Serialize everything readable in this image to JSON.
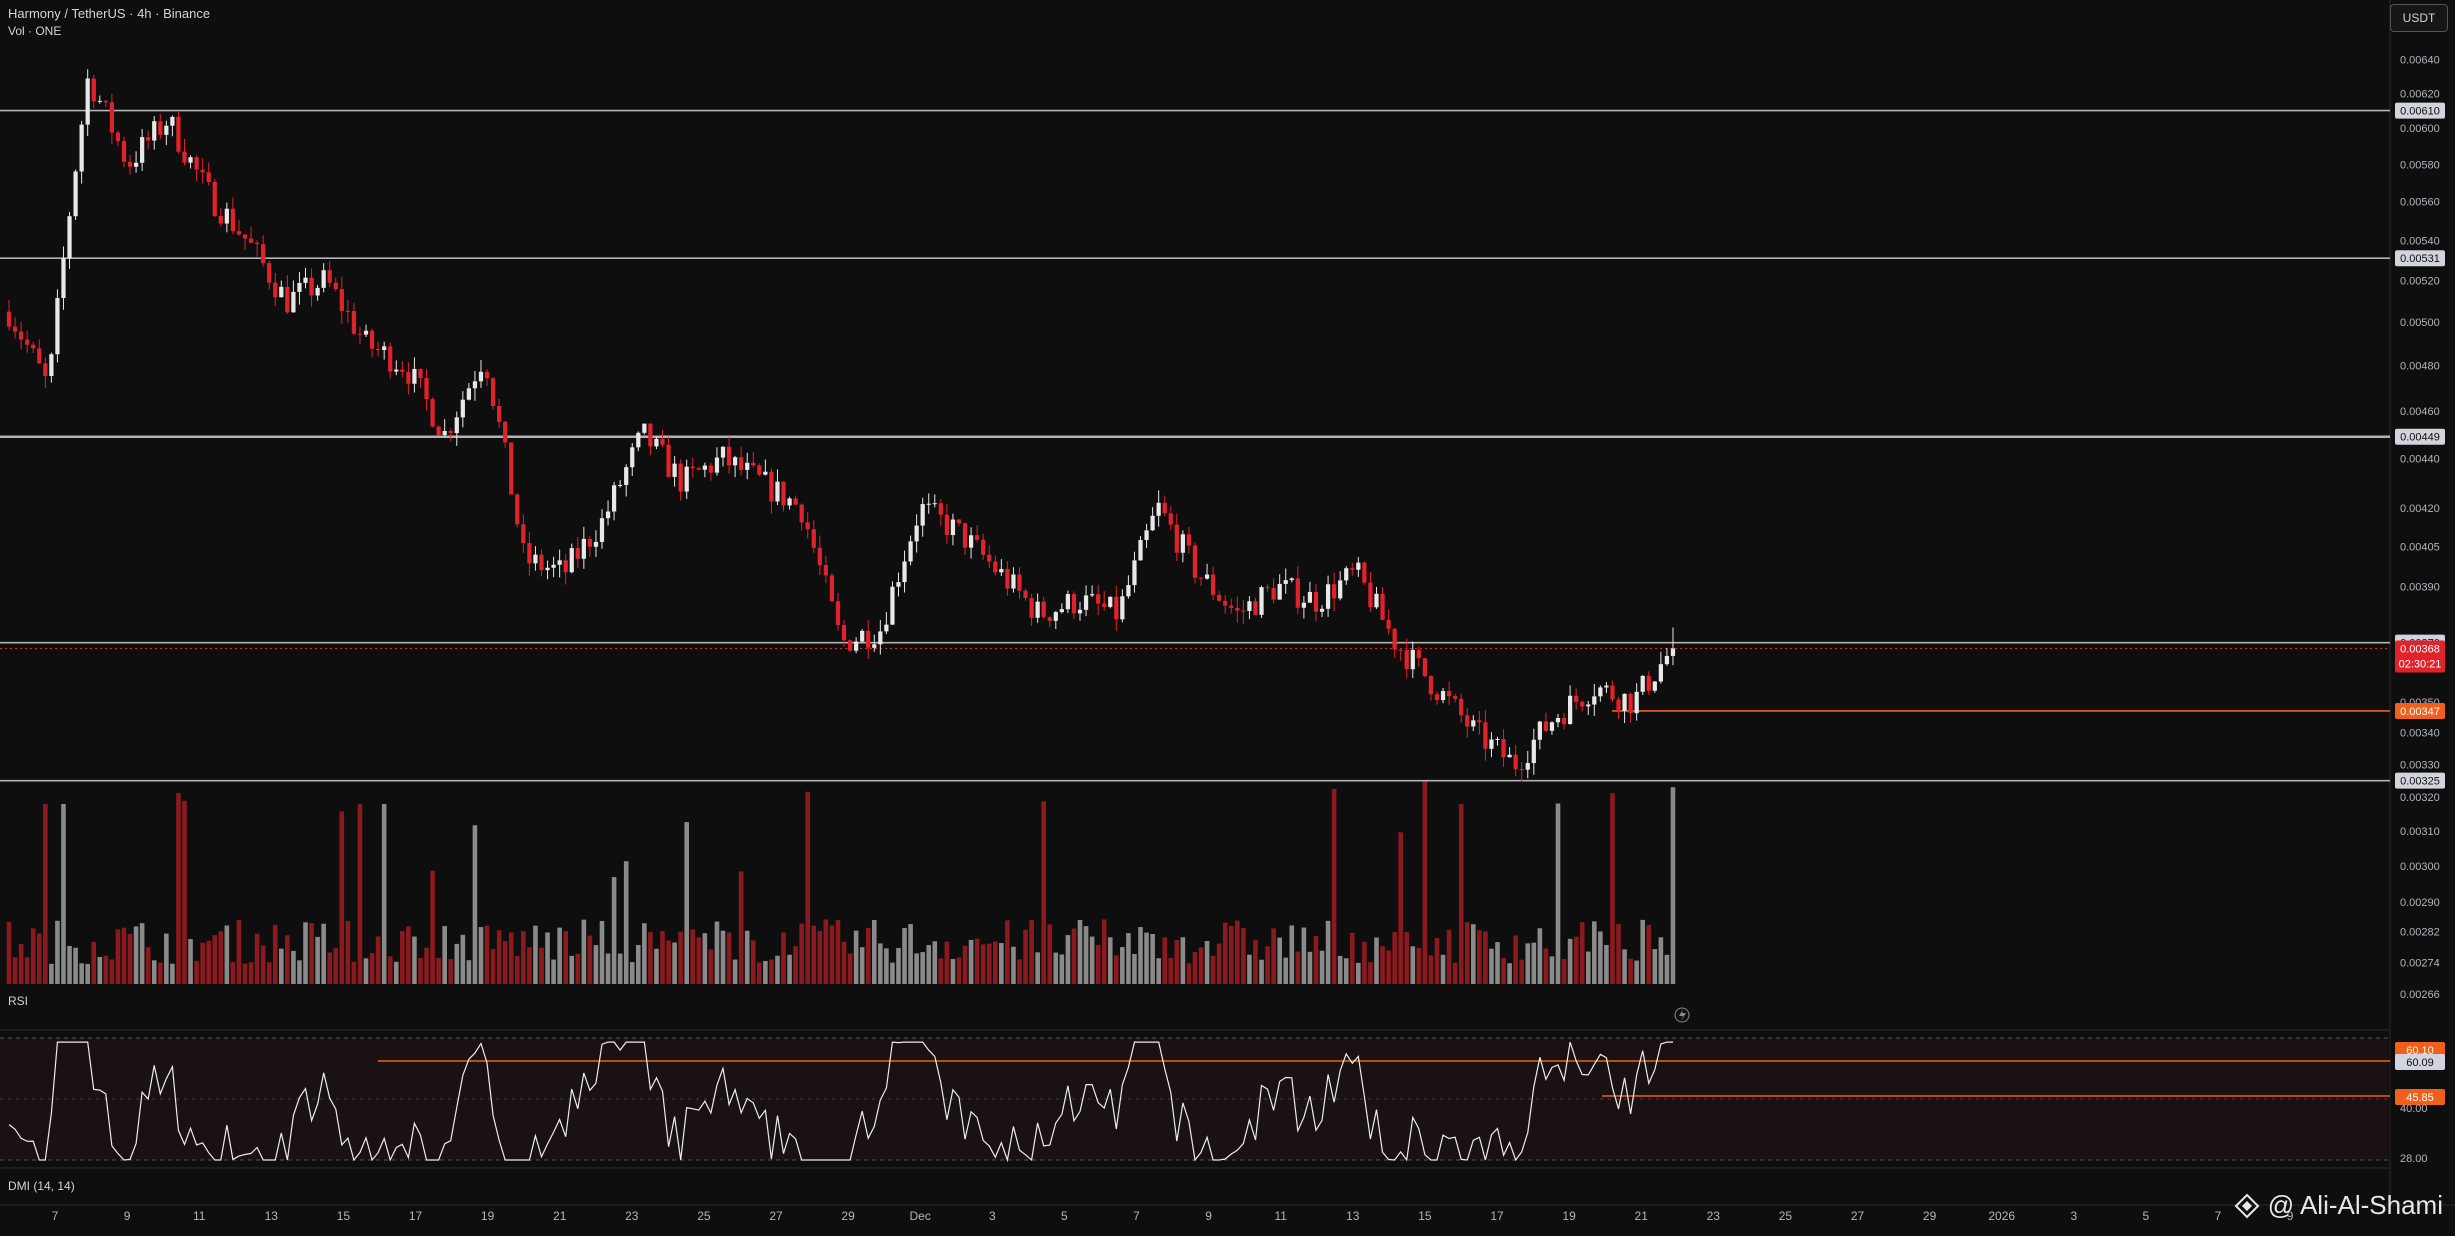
{
  "header": {
    "symbol_line": "Harmony / TetherUS · 4h · Binance",
    "volume_label": "Vol · ONE"
  },
  "currency_button": "USDT",
  "indicators": {
    "rsi_label": "RSI",
    "dmi_label": "DMI (14, 14)"
  },
  "watermark": {
    "text": "@ Ali-Al-Shami"
  },
  "colors": {
    "background": "#0e0e0e",
    "up_candle": "#e8e8e8",
    "down_candle": "#e0232b",
    "up_volume": "#8a8a8a",
    "down_volume": "#8b1a1f",
    "level_line": "#b3b3b3",
    "accent_orange": "#f0601a",
    "last_price_red": "#e0232b"
  },
  "price_axis": {
    "ticks": [
      "0.00640",
      "0.00620",
      "0.00600",
      "0.00580",
      "0.00560",
      "0.00540",
      "0.00520",
      "0.00500",
      "0.00480",
      "0.00460",
      "0.00440",
      "0.00420",
      "0.00405",
      "0.00390",
      "0.00350",
      "0.00340",
      "0.00330",
      "0.00320",
      "0.00310",
      "0.00300",
      "0.00290",
      "0.00282",
      "0.00274",
      "0.00266"
    ],
    "tags": [
      {
        "label": "0.00610",
        "value": 0.0061,
        "kind": "level"
      },
      {
        "label": "0.00531",
        "value": 0.00531,
        "kind": "level"
      },
      {
        "label": "0.00449",
        "value": 0.00449,
        "kind": "level"
      },
      {
        "label": "0.00370",
        "value": 0.0037,
        "kind": "level"
      },
      {
        "label": "0.00347",
        "value": 0.00347,
        "kind": "orange"
      },
      {
        "label": "0.00325",
        "value": 0.00325,
        "kind": "level"
      }
    ],
    "last_price": {
      "value": "0.00368",
      "countdown": "02:30:21"
    }
  },
  "horizontal_levels": [
    0.0061,
    0.00531,
    0.00449,
    0.0037,
    0.00325
  ],
  "support_line": {
    "value": 0.00347,
    "from_date": "Dec 20"
  },
  "rsi_axis": {
    "tags": [
      {
        "label": "60.10",
        "kind": "orange"
      },
      {
        "label": "60.09",
        "kind": "plain"
      },
      {
        "label": "45.85",
        "kind": "orange"
      }
    ],
    "ticks": [
      "40.00",
      "28.00"
    ]
  },
  "time_axis": {
    "labels": [
      "7",
      "9",
      "11",
      "13",
      "15",
      "17",
      "19",
      "21",
      "23",
      "25",
      "27",
      "29",
      "Dec",
      "3",
      "5",
      "7",
      "9",
      "11",
      "13",
      "15",
      "17",
      "19",
      "21",
      "23",
      "25",
      "27",
      "29",
      "2026",
      "3",
      "5",
      "7",
      "9"
    ]
  },
  "chart_data": {
    "type": "candlestick",
    "title": "Harmony / TetherUS · 4h · Binance",
    "timeframe": "4h",
    "y_range": [
      0.00262,
      0.00658
    ],
    "anchors": [
      {
        "date": "Nov 6",
        "price": 0.00505
      },
      {
        "date": "Nov 7",
        "price": 0.0047
      },
      {
        "date": "Nov 8",
        "price": 0.0063
      },
      {
        "date": "Nov 9",
        "price": 0.0058
      },
      {
        "date": "Nov 11",
        "price": 0.00605
      },
      {
        "date": "Nov 12",
        "price": 0.00565
      },
      {
        "date": "Nov 13",
        "price": 0.0054
      },
      {
        "date": "Nov 14",
        "price": 0.0051
      },
      {
        "date": "Nov 15",
        "price": 0.0052
      },
      {
        "date": "Nov 17",
        "price": 0.0049
      },
      {
        "date": "Nov 18",
        "price": 0.0048
      },
      {
        "date": "Nov 19",
        "price": 0.0045
      },
      {
        "date": "Nov 20",
        "price": 0.00485
      },
      {
        "date": "Nov 21",
        "price": 0.004
      },
      {
        "date": "Nov 22",
        "price": 0.00395
      },
      {
        "date": "Nov 23",
        "price": 0.00415
      },
      {
        "date": "Nov 24",
        "price": 0.0045
      },
      {
        "date": "Nov 25",
        "price": 0.0043
      },
      {
        "date": "Nov 26",
        "price": 0.0044
      },
      {
        "date": "Nov 28",
        "price": 0.0043
      },
      {
        "date": "Nov 29",
        "price": 0.0042
      },
      {
        "date": "Nov 30",
        "price": 0.0037
      },
      {
        "date": "Dec 1",
        "price": 0.00375
      },
      {
        "date": "Dec 2",
        "price": 0.0042
      },
      {
        "date": "Dec 3",
        "price": 0.0041
      },
      {
        "date": "Dec 4",
        "price": 0.00395
      },
      {
        "date": "Dec 6",
        "price": 0.0038
      },
      {
        "date": "Dec 7",
        "price": 0.00385
      },
      {
        "date": "Dec 8",
        "price": 0.0038
      },
      {
        "date": "Dec 9",
        "price": 0.0042
      },
      {
        "date": "Dec 10",
        "price": 0.00395
      },
      {
        "date": "Dec 11",
        "price": 0.0038
      },
      {
        "date": "Dec 12",
        "price": 0.0039
      },
      {
        "date": "Dec 13",
        "price": 0.00385
      },
      {
        "date": "Dec 14",
        "price": 0.00395
      },
      {
        "date": "Dec 15",
        "price": 0.0037
      },
      {
        "date": "Dec 16",
        "price": 0.00355
      },
      {
        "date": "Dec 17",
        "price": 0.0034
      },
      {
        "date": "Dec 18",
        "price": 0.0033
      },
      {
        "date": "Dec 19",
        "price": 0.00345
      },
      {
        "date": "Dec 20",
        "price": 0.00355
      },
      {
        "date": "Dec 21",
        "price": 0.0035
      },
      {
        "date": "Dec 22",
        "price": 0.00368
      }
    ],
    "volume_profile_note": "",
    "rsi_last": 60.1
  }
}
